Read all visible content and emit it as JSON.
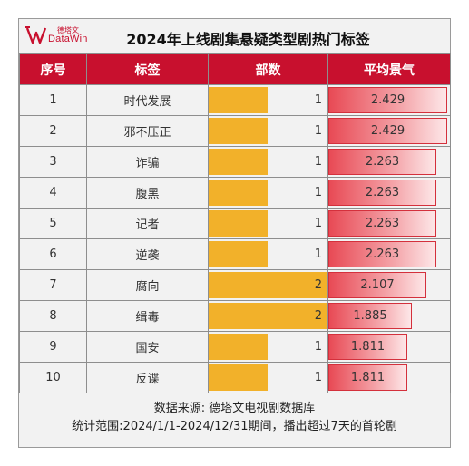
{
  "logo": {
    "cn": "德塔文",
    "en": "DataWin"
  },
  "chart_data": {
    "type": "table",
    "title": "2024年上线剧集悬疑类型剧热门标签",
    "columns": [
      "序号",
      "标签",
      "部数",
      "平均景气"
    ],
    "rows": [
      {
        "rank": "1",
        "tag": "时代发展",
        "count": 1,
        "heat": 2.429
      },
      {
        "rank": "2",
        "tag": "邪不压正",
        "count": 1,
        "heat": 2.429
      },
      {
        "rank": "3",
        "tag": "诈骗",
        "count": 1,
        "heat": 2.263
      },
      {
        "rank": "4",
        "tag": "腹黑",
        "count": 1,
        "heat": 2.263
      },
      {
        "rank": "5",
        "tag": "记者",
        "count": 1,
        "heat": 2.263
      },
      {
        "rank": "6",
        "tag": "逆袭",
        "count": 1,
        "heat": 2.263
      },
      {
        "rank": "7",
        "tag": "腐向",
        "count": 2,
        "heat": 2.107
      },
      {
        "rank": "8",
        "tag": "缉毒",
        "count": 2,
        "heat": 1.885
      },
      {
        "rank": "9",
        "tag": "国安",
        "count": 1,
        "heat": 1.811
      },
      {
        "rank": "10",
        "tag": "反谍",
        "count": 1,
        "heat": 1.811
      }
    ],
    "colors": {
      "header": "#c8102e",
      "count_bar": "#f2b12a",
      "heat_bar": "#e84a55"
    }
  },
  "footer": {
    "source": "数据来源: 德塔文电视剧数据库",
    "range": "统计范围:2024/1/1-2024/12/31期间，播出超过7天的首轮剧"
  }
}
